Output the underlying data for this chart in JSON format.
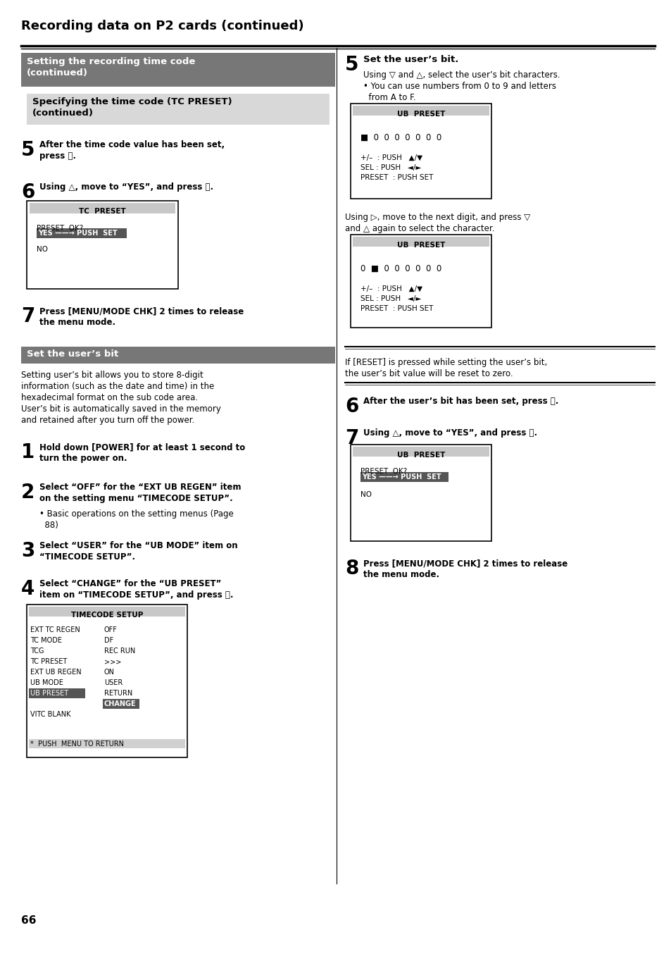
{
  "page_title": "Recording data on P2 cards (continued)",
  "bg_color": "#ffffff",
  "section1_header": "Setting the recording time code\n(continued)",
  "section1_header_bg": "#777777",
  "section1_header_color": "#ffffff",
  "section2_header": "Specifying the time code (TC PRESET)\n(continued)",
  "section2_header_bg": "#d8d8d8",
  "section2_header_color": "#000000",
  "step5_left": "5",
  "step5_text": "After the time code value has been set,\npress Ⓐ.",
  "step6_left": "6",
  "step6_text": "Using △, move to “YES”, and press Ⓐ.",
  "tc_preset_box_title": "TC  PRESET",
  "tc_preset_line1": "PRESET  OK?",
  "tc_preset_line2": "YES ——→ PUSH  SET",
  "tc_preset_line3": "NO",
  "step7_left": "7",
  "step7_text": "Press [MENU/MODE CHK] 2 times to release\nthe menu mode.",
  "section3_header": "Set the user’s bit",
  "section3_header_bg": "#777777",
  "section3_header_color": "#ffffff",
  "section3_body": "Setting user’s bit allows you to store 8-digit\ninformation (such as the date and time) in the\nhexadecimal format on the sub code area.\nUser’s bit is automatically saved in the memory\nand retained after you turn off the power.",
  "step1_left": "1",
  "step1_text": "Hold down [POWER] for at least 1 second to\nturn the power on.",
  "step2_left": "2",
  "step2_text": "Select “OFF” for the “EXT UB REGEN” item\non the setting menu “TIMECODE SETUP”.",
  "step2_bullet": "• Basic operations on the setting menus (Page\n  88)",
  "step3_left": "3",
  "step3_text": "Select “USER” for the “UB MODE” item on\n“TIMECODE SETUP”.",
  "step4_left": "4",
  "step4_text": "Select “CHANGE” for the “UB PRESET”\nitem on “TIMECODE SETUP”, and press Ⓐ.",
  "timecode_title": "TIMECODE SETUP",
  "timecode_rows": [
    [
      "EXT TC REGEN",
      "OFF"
    ],
    [
      "TC MODE",
      "DF"
    ],
    [
      "TCG",
      "REC RUN"
    ],
    [
      "TC PRESET",
      ">>>"
    ],
    [
      "EXT UB REGEN",
      "ON"
    ],
    [
      "UB MODE",
      "USER"
    ],
    [
      "UB PRESET",
      "RETURN"
    ],
    [
      "",
      "CHANGE"
    ],
    [
      "VITC BLANK",
      ""
    ]
  ],
  "timecode_footer": "*  PUSH  MENU TO RETURN",
  "right_step5_label": "5",
  "right_step5_title": "Set the user’s bit.",
  "right_step5_sub": "Using ▽ and △, select the user’s bit characters.",
  "right_step5_bullet": "• You can use numbers from 0 to 9 and letters\n  from A to F.",
  "ub_preset1_title": "UB  PRESET",
  "ub_preset1_line1": "■  0  0  0  0  0  0  0",
  "ub_preset1_line2": "+/–  : PUSH   ▲/▼",
  "ub_preset1_line3": "SEL : PUSH   ◄/►",
  "ub_preset1_line4": "PRESET  : PUSH SET",
  "right_step5_cont": "Using ▷, move to the next digit, and press ▽\nand △ again to select the character.",
  "ub_preset2_title": "UB  PRESET",
  "ub_preset2_line1": "0  ■  0  0  0  0  0  0",
  "ub_preset2_line2": "+/–  : PUSH   ▲/▼",
  "ub_preset2_line3": "SEL : PUSH   ◄/►",
  "ub_preset2_line4": "PRESET  : PUSH SET",
  "reset_note": "If [RESET] is pressed while setting the user’s bit,\nthe user’s bit value will be reset to zero.",
  "right_step6_label": "6",
  "right_step6_text": "After the user’s bit has been set, press Ⓐ.",
  "right_step7_label": "7",
  "right_step7_text": "Using △, move to “YES”, and press Ⓐ.",
  "ub_preset3_title": "UB  PRESET",
  "ub_preset3_line1": "PRESET  OK?",
  "ub_preset3_line2": "YES ——→ PUSH  SET",
  "ub_preset3_line3": "NO",
  "right_step8_label": "8",
  "right_step8_text": "Press [MENU/MODE CHK] 2 times to release\nthe menu mode.",
  "page_number": "66"
}
